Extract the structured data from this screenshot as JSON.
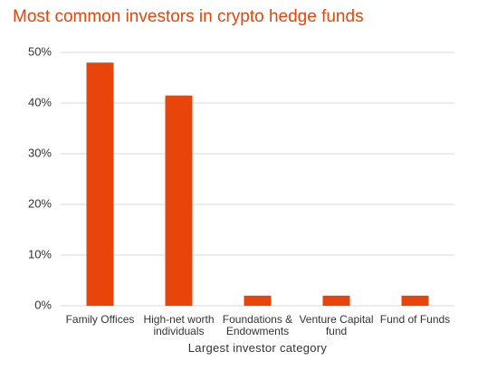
{
  "chart_data": {
    "type": "bar",
    "title": "Most common investors in crypto hedge funds",
    "x_label": "Largest investor category",
    "categories": [
      "Family Offices",
      "High-net worth individuals",
      "Foundations & Endowments",
      "Venture Capital fund",
      "Fund of Funds"
    ],
    "values": [
      48,
      41.5,
      2,
      2,
      2
    ],
    "color": "#e8450b",
    "ylim": [
      0,
      50
    ],
    "yticks": [
      {
        "value": 0,
        "label": "0%"
      },
      {
        "value": 10,
        "label": "10%"
      },
      {
        "value": 20,
        "label": "20%"
      },
      {
        "value": 30,
        "label": "30%"
      },
      {
        "value": 40,
        "label": "40%"
      },
      {
        "value": 50,
        "label": "50%"
      }
    ],
    "grid": true
  }
}
